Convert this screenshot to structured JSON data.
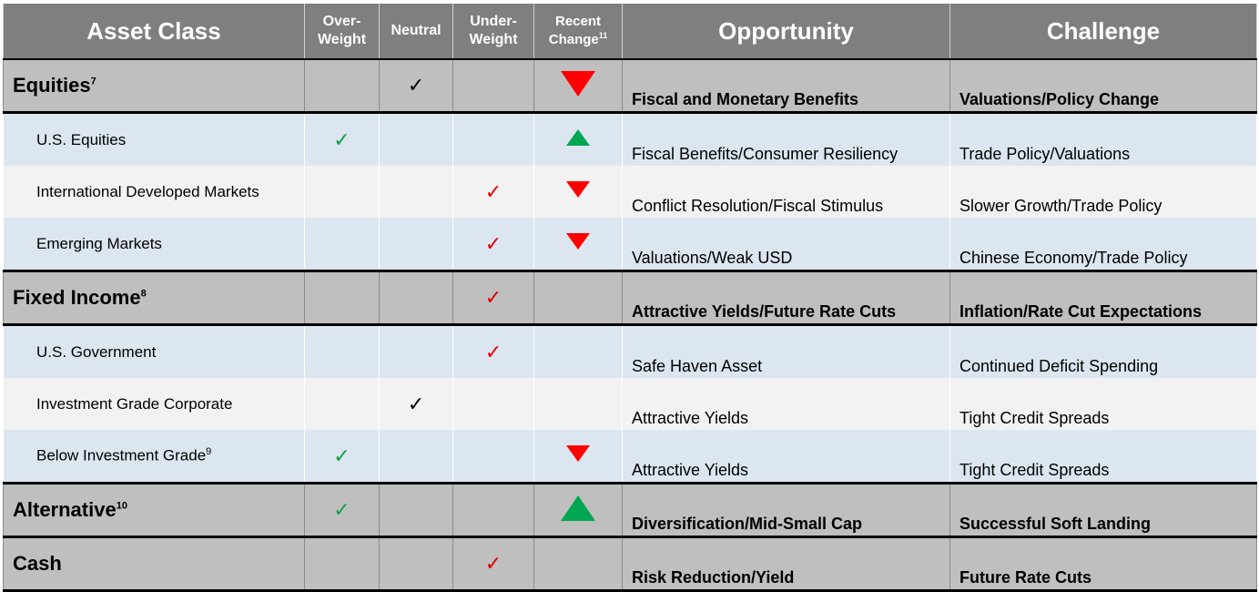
{
  "headers": {
    "asset_class": "Asset Class",
    "overweight_1": "Over-",
    "overweight_2": "Weight",
    "neutral": "Neutral",
    "underweight_1": "Under-",
    "underweight_2": "Weight",
    "recent_1": "Recent",
    "recent_2": "Change",
    "recent_sup": "11",
    "opportunity": "Opportunity",
    "challenge": "Challenge"
  },
  "rows": [
    {
      "kind": "section",
      "name": "Equities",
      "sup": "7",
      "position": "neutral",
      "position_color": "#000000",
      "change": "down",
      "opportunity": "Fiscal and Monetary Benefits",
      "challenge": "Valuations/Policy Change"
    },
    {
      "kind": "sub",
      "name": "U.S. Equities",
      "sup": "",
      "position": "overweight",
      "position_color": "#14a046",
      "change": "up",
      "opportunity": "Fiscal Benefits/Consumer Resiliency",
      "challenge": "Trade Policy/Valuations"
    },
    {
      "kind": "sub",
      "name": "International Developed Markets",
      "sup": "",
      "position": "underweight",
      "position_color": "#e00000",
      "change": "down",
      "opportunity": "Conflict Resolution/Fiscal Stimulus",
      "challenge": "Slower Growth/Trade Policy"
    },
    {
      "kind": "sub",
      "name": "Emerging Markets",
      "sup": "",
      "position": "underweight",
      "position_color": "#e00000",
      "change": "down",
      "opportunity": "Valuations/Weak USD",
      "challenge": "Chinese Economy/Trade Policy"
    },
    {
      "kind": "section",
      "name": "Fixed Income",
      "sup": "8",
      "position": "underweight",
      "position_color": "#e00000",
      "change": "",
      "opportunity": "Attractive Yields/Future Rate Cuts",
      "challenge": "Inflation/Rate Cut Expectations"
    },
    {
      "kind": "sub",
      "name": "U.S. Government",
      "sup": "",
      "position": "underweight",
      "position_color": "#e00000",
      "change": "",
      "opportunity": "Safe Haven Asset",
      "challenge": "Continued Deficit Spending"
    },
    {
      "kind": "sub",
      "name": "Investment Grade Corporate",
      "sup": "",
      "position": "neutral",
      "position_color": "#000000",
      "change": "",
      "opportunity": "Attractive Yields",
      "challenge": "Tight Credit Spreads"
    },
    {
      "kind": "sub",
      "name": "Below Investment Grade",
      "sup": "9",
      "position": "overweight",
      "position_color": "#14a046",
      "change": "down",
      "opportunity": "Attractive Yields",
      "challenge": "Tight Credit Spreads"
    },
    {
      "kind": "section",
      "name": "Alternative",
      "sup": "10",
      "position": "overweight",
      "position_color": "#14a046",
      "change": "up",
      "opportunity": "Diversification/Mid-Small Cap",
      "challenge": "Successful Soft Landing"
    },
    {
      "kind": "section",
      "name": "Cash",
      "sup": "",
      "position": "underweight",
      "position_color": "#e00000",
      "change": "",
      "opportunity": "Risk Reduction/Yield",
      "challenge": "Future Rate Cuts"
    }
  ],
  "check_glyph": "✓",
  "colors": {
    "header": "#7f7f7f",
    "section": "#bfbfbf",
    "row_blue": "#dce6f1",
    "row_grey": "#f2f2f2",
    "up": "#00a650",
    "down": "#ff0000"
  }
}
